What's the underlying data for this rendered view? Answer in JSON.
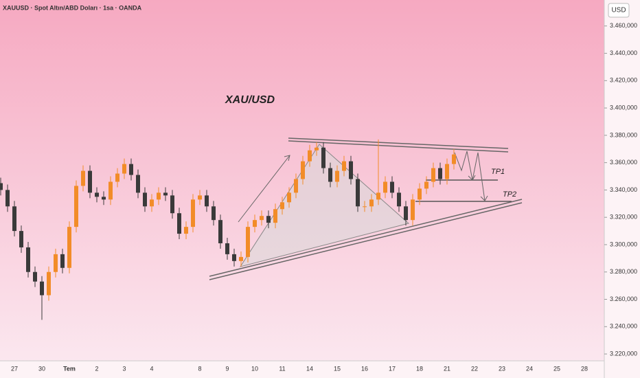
{
  "chart_data": {
    "type": "candlestick",
    "header": "XAUUSD · Spot Altın/ABD Doları · 1sa · OANDA",
    "currency": "USD",
    "annotation": "XAU/USD",
    "targets": [
      "TP1",
      "TP2"
    ],
    "up_color": "#f28c28",
    "down_color": "#3a3a3a",
    "categories": [
      null,
      null,
      "27",
      null,
      null,
      null,
      "30",
      null,
      null,
      null,
      "Tem",
      null,
      null,
      null,
      "2",
      null,
      null,
      null,
      "3",
      null,
      null,
      null,
      "4",
      null,
      null,
      null,
      null,
      null,
      null,
      "8",
      null,
      null,
      null,
      "9",
      null,
      null,
      null,
      "10",
      null,
      null,
      null,
      "11",
      null,
      null,
      null,
      "14",
      null,
      null,
      null,
      "15",
      null,
      null,
      null,
      "16",
      null,
      null,
      null,
      "17",
      null,
      null,
      null,
      "18",
      null,
      null,
      null,
      "21",
      null,
      null,
      null,
      "22",
      null,
      null,
      null,
      "23",
      null,
      null,
      null,
      "24",
      null,
      null,
      null,
      "25",
      null,
      null,
      null,
      "28"
    ],
    "open": [
      3345,
      3340,
      3328,
      3310,
      3298,
      3280,
      3273,
      3263,
      3280,
      3293,
      3283,
      3313,
      3343,
      3354,
      3338,
      3335,
      3333,
      3346,
      3352,
      3359,
      3351,
      3338,
      3328,
      3333,
      3338,
      3336,
      3323,
      3308,
      3313,
      3333,
      3336,
      3328,
      3318,
      3301,
      3293,
      3288,
      3291,
      3313,
      3318,
      3321,
      3316,
      3326,
      3331,
      3338,
      3348,
      3361,
      3369,
      3371,
      3356,
      3346,
      3354,
      3361,
      3348,
      3328,
      3328,
      3333,
      3338,
      3346,
      3338,
      3328,
      3318,
      3333,
      3341,
      3346,
      3356,
      3348,
      3359,
      null,
      null,
      null,
      null,
      null,
      null,
      null,
      null,
      null,
      null,
      null,
      null,
      null,
      null,
      null,
      null,
      null,
      null,
      null
    ],
    "high": [
      3349,
      3344,
      3332,
      3314,
      3302,
      3284,
      3277,
      3284,
      3297,
      3297,
      3317,
      3347,
      3358,
      3358,
      3342,
      3339,
      3350,
      3356,
      3363,
      3363,
      3355,
      3342,
      3337,
      3342,
      3342,
      3340,
      3327,
      3317,
      3337,
      3340,
      3340,
      3332,
      3322,
      3305,
      3297,
      3295,
      3317,
      3322,
      3325,
      3325,
      3330,
      3335,
      3342,
      3352,
      3365,
      3373,
      3375,
      3375,
      3360,
      3358,
      3365,
      3365,
      3352,
      3332,
      3337,
      3377,
      3350,
      3350,
      3342,
      3332,
      3337,
      3345,
      3350,
      3360,
      3360,
      3363,
      3370,
      null,
      null,
      null,
      null,
      null,
      null,
      null,
      null,
      null,
      null,
      null,
      null,
      null,
      null,
      null,
      null,
      null,
      null,
      null
    ],
    "low": [
      3336,
      3324,
      3306,
      3294,
      3276,
      3269,
      3245,
      3259,
      3276,
      3279,
      3279,
      3309,
      3339,
      3334,
      3331,
      3329,
      3329,
      3342,
      3348,
      3347,
      3334,
      3324,
      3324,
      3329,
      3332,
      3319,
      3304,
      3304,
      3309,
      3329,
      3324,
      3314,
      3297,
      3289,
      3284,
      3284,
      3287,
      3309,
      3314,
      3312,
      3312,
      3322,
      3327,
      3334,
      3344,
      3357,
      3365,
      3352,
      3342,
      3342,
      3350,
      3344,
      3324,
      3324,
      3324,
      3329,
      3334,
      3334,
      3324,
      3314,
      3314,
      3329,
      3337,
      3342,
      3344,
      3344,
      3355,
      null,
      null,
      null,
      null,
      null,
      null,
      null,
      null,
      null,
      null,
      null,
      null,
      null,
      null,
      null,
      null,
      null,
      null,
      null
    ],
    "close": [
      3340,
      3328,
      3310,
      3298,
      3280,
      3273,
      3263,
      3280,
      3293,
      3283,
      3313,
      3343,
      3354,
      3338,
      3335,
      3333,
      3346,
      3352,
      3359,
      3351,
      3338,
      3328,
      3333,
      3338,
      3336,
      3323,
      3308,
      3313,
      3333,
      3336,
      3328,
      3318,
      3301,
      3293,
      3288,
      3291,
      3313,
      3318,
      3321,
      3316,
      3326,
      3331,
      3338,
      3348,
      3361,
      3369,
      3371,
      3356,
      3346,
      3354,
      3361,
      3348,
      3328,
      3328,
      3333,
      3338,
      3346,
      3338,
      3328,
      3318,
      3333,
      3341,
      3346,
      3356,
      3348,
      3359,
      3366,
      null,
      null,
      null,
      null,
      null,
      null,
      null,
      null,
      null,
      null,
      null,
      null,
      null,
      null,
      null,
      null,
      null,
      null,
      null
    ],
    "ylim": [
      3215,
      3479
    ],
    "yticks": [
      {
        "value": 3220,
        "label": "3.220,000"
      },
      {
        "value": 3240,
        "label": "3.240,000"
      },
      {
        "value": 3260,
        "label": "3.260,000"
      },
      {
        "value": 3280,
        "label": "3.280,000"
      },
      {
        "value": 3300,
        "label": "3.300,000"
      },
      {
        "value": 3320,
        "label": "3.320,000"
      },
      {
        "value": 3340,
        "label": "3.340,000"
      },
      {
        "value": 3360,
        "label": "3.360,000"
      },
      {
        "value": 3380,
        "label": "3.380,000"
      },
      {
        "value": 3400,
        "label": "3.400,000"
      },
      {
        "value": 3420,
        "label": "3.420,000"
      },
      {
        "value": 3440,
        "label": "3.440,000"
      },
      {
        "value": 3460,
        "label": "3.460,000"
      }
    ],
    "grid": false
  }
}
